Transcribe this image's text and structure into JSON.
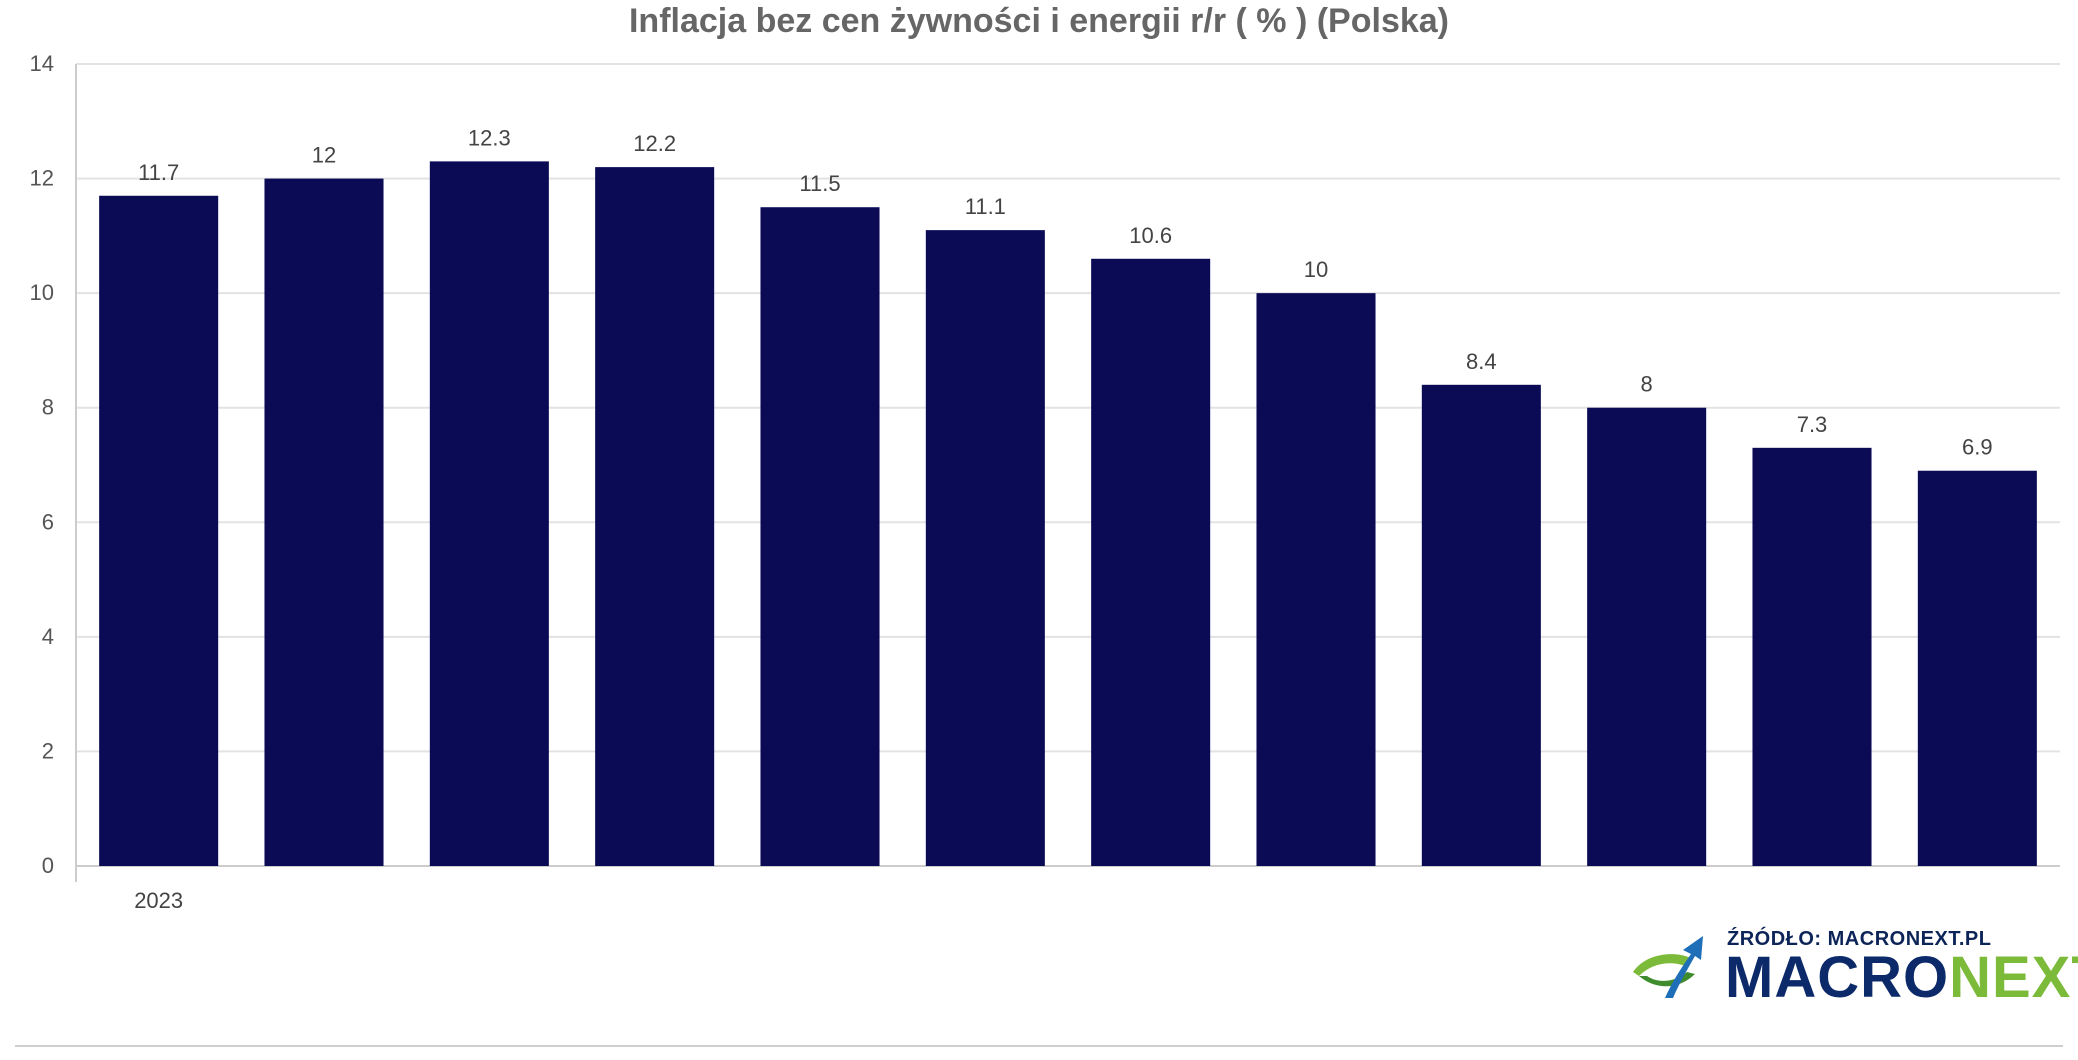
{
  "chart_data": {
    "type": "bar",
    "title": "Inflacja bez cen żywności i energii r/r ( % ) (Polska)",
    "categories": [
      "2023",
      "",
      "",
      "",
      "",
      "",
      "",
      "",
      "",
      "",
      "",
      ""
    ],
    "values": [
      11.7,
      12,
      12.3,
      12.2,
      11.5,
      11.1,
      10.6,
      10,
      8.4,
      8,
      7.3,
      6.9
    ],
    "data_labels": [
      "11.7",
      "12",
      "12.3",
      "12.2",
      "11.5",
      "11.1",
      "10.6",
      "10",
      "8.4",
      "8",
      "7.3",
      "6.9"
    ],
    "ylim": [
      0,
      14
    ],
    "yticks": [
      "0",
      "2",
      "4",
      "6",
      "8",
      "10",
      "12",
      "14"
    ],
    "xlabel": "",
    "ylabel": "",
    "grid": true,
    "bar_color": "#0b0b55"
  },
  "footer": {
    "source": "ŹRÓDŁO: MACRONEXT.PL",
    "brand_part1": "MACRO",
    "brand_part2": "NEXT"
  }
}
